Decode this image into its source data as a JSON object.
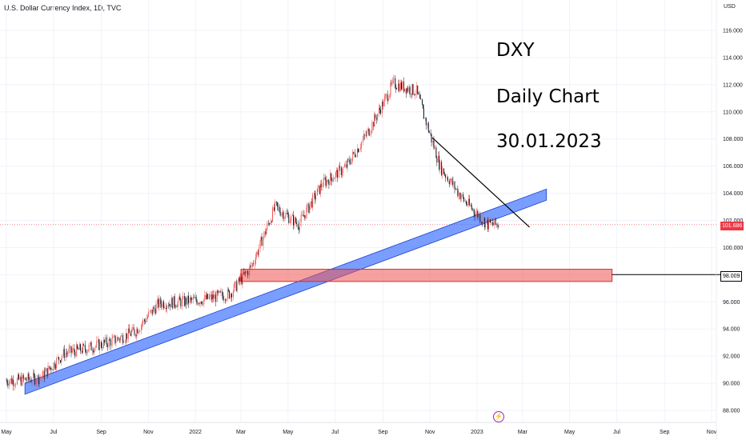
{
  "header": {
    "title": "U.S. Dollar Currency Index, 1D, TVC",
    "unit": "USD"
  },
  "annotations": {
    "line1": "DXY",
    "line2": "Daily Chart",
    "line3": "30.01.2023"
  },
  "price_tags": {
    "last": "101.686",
    "support": "98.009"
  },
  "colors": {
    "up": "#ef5350",
    "down": "#131722",
    "channel": "#2962ff",
    "zone": "#ef5350",
    "last_tag": "#f23645"
  },
  "icons": {
    "event": "lightning-icon"
  },
  "chart_data": {
    "type": "line",
    "title": "U.S. Dollar Currency Index, 1D, TVC",
    "xlabel": "",
    "ylabel": "USD",
    "ylim": [
      87.6,
      117.0
    ],
    "yticks": [
      "88.000",
      "90.000",
      "92.000",
      "94.000",
      "96.000",
      "98.000",
      "100.000",
      "102.000",
      "104.000",
      "106.000",
      "108.000",
      "110.000",
      "112.000",
      "114.000",
      "116.000"
    ],
    "xticks": [
      "May",
      "Jul",
      "Sep",
      "Nov",
      "2022",
      "Mar",
      "May",
      "Jul",
      "Sep",
      "Nov",
      "2023",
      "Mar",
      "May",
      "Jul",
      "Sep",
      "Nov"
    ],
    "x": [
      "2021-05",
      "2021-06",
      "2021-07",
      "2021-08",
      "2021-09",
      "2021-10",
      "2021-11",
      "2021-12",
      "2022-01",
      "2022-02",
      "2022-03",
      "2022-04",
      "2022-05",
      "2022-06",
      "2022-07",
      "2022-08",
      "2022-09",
      "2022-10",
      "2022-11",
      "2022-12",
      "2023-01"
    ],
    "series": [
      {
        "values": [
          90.2,
          90.4,
          92.2,
          92.6,
          93.1,
          93.8,
          95.9,
          96.0,
          96.2,
          96.6,
          98.6,
          103.0,
          101.7,
          104.7,
          105.9,
          108.7,
          112.1,
          111.5,
          105.9,
          103.5,
          101.7
        ]
      }
    ],
    "trend_channel": {
      "from": [
        "2021-05-25",
        89.6
      ],
      "to": [
        "2023-04-01",
        103.9
      ]
    },
    "descending_trendline": {
      "from": [
        "2022-11-04",
        108.1
      ],
      "to": [
        "2023-03-10",
        101.5
      ]
    },
    "support_zone": {
      "from": "2022-03-01",
      "to": "2023-06-25",
      "low": 97.5,
      "high": 98.4,
      "level": 98.009
    },
    "grid": true,
    "legend": "none"
  }
}
